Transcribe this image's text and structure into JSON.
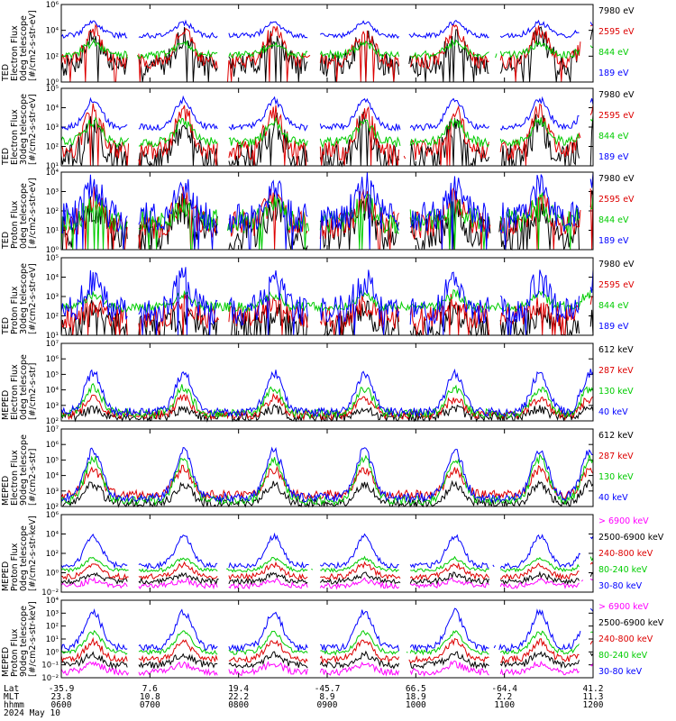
{
  "chart_data": [
    {
      "type": "line",
      "ylabel_lines": [
        "TED",
        "Electron Flux",
        "0deg telescope",
        "[#/cm2-s-str-eV]"
      ],
      "y_ticks": [
        "10⁶",
        "10⁴",
        "10²",
        "10⁰"
      ],
      "y_range_log10": [
        0,
        6
      ],
      "series": [
        {
          "name": "7980 eV",
          "color": "#000000",
          "base": 1.3,
          "peaks": 3.5,
          "noise": 0.9,
          "gaps": true
        },
        {
          "name": "2595 eV",
          "color": "#dd0000",
          "base": 1.6,
          "peaks": 4.0,
          "noise": 0.6,
          "gaps": true
        },
        {
          "name": "844 eV",
          "color": "#00cc00",
          "base": 2.1,
          "peaks": 3.0,
          "noise": 0.3,
          "gaps": true
        },
        {
          "name": "189 eV",
          "color": "#0000ff",
          "base": 3.6,
          "peaks": 4.6,
          "noise": 0.2,
          "gaps": true
        }
      ]
    },
    {
      "type": "line",
      "ylabel_lines": [
        "TED",
        "Electron Flux",
        "30deg telescope",
        "[#/cm2-s-str-eV]"
      ],
      "y_ticks": [
        "10⁵",
        "10⁴",
        "10³",
        "10²",
        "10¹"
      ],
      "y_range_log10": [
        0.6,
        5.2
      ],
      "series": [
        {
          "name": "7980 eV",
          "color": "#000000",
          "base": 1.0,
          "peaks": 3.0,
          "noise": 0.9,
          "gaps": true
        },
        {
          "name": "2595 eV",
          "color": "#dd0000",
          "base": 1.5,
          "peaks": 3.8,
          "noise": 0.6,
          "gaps": true
        },
        {
          "name": "844 eV",
          "color": "#00cc00",
          "base": 2.0,
          "peaks": 3.2,
          "noise": 0.3,
          "gaps": true
        },
        {
          "name": "189 eV",
          "color": "#0000ff",
          "base": 2.9,
          "peaks": 4.5,
          "noise": 0.2,
          "gaps": true
        }
      ]
    },
    {
      "type": "line",
      "ylabel_lines": [
        "TED",
        "Proton Flux",
        "0deg telescope",
        "[#/cm2-s-str-eV]"
      ],
      "y_ticks": [
        "10⁴",
        "10³",
        "10²",
        "10¹",
        "10⁰"
      ],
      "y_range_log10": [
        0,
        4.4
      ],
      "series": [
        {
          "name": "7980 eV",
          "color": "#000000",
          "base": 0.9,
          "peaks": 2.4,
          "noise": 1.0,
          "gaps": true
        },
        {
          "name": "2595 eV",
          "color": "#dd0000",
          "base": 1.4,
          "peaks": 2.8,
          "noise": 0.8,
          "gaps": true
        },
        {
          "name": "844 eV",
          "color": "#00cc00",
          "base": 1.6,
          "peaks": 2.6,
          "noise": 0.7,
          "gaps": true
        },
        {
          "name": "189 eV",
          "color": "#0000ff",
          "base": 1.8,
          "peaks": 3.6,
          "noise": 0.9,
          "gaps": true
        }
      ]
    },
    {
      "type": "line",
      "ylabel_lines": [
        "TED",
        "Proton Flux",
        "30deg telescope",
        "[#/cm2-s-str-eV]"
      ],
      "y_ticks": [
        "10⁵",
        "10⁴",
        "10³",
        "10²",
        "10¹"
      ],
      "y_range_log10": [
        0.5,
        5.2
      ],
      "series": [
        {
          "name": "7980 eV",
          "color": "#000000",
          "base": 1.0,
          "peaks": 1.8,
          "noise": 0.9,
          "gaps": true
        },
        {
          "name": "2595 eV",
          "color": "#dd0000",
          "base": 1.6,
          "peaks": 2.4,
          "noise": 0.7,
          "gaps": true
        },
        {
          "name": "844 eV",
          "color": "#00cc00",
          "base": 2.2,
          "peaks": 3.0,
          "noise": 0.3,
          "gaps": false
        },
        {
          "name": "189 eV",
          "color": "#0000ff",
          "base": 2.0,
          "peaks": 3.8,
          "noise": 0.9,
          "gaps": true
        }
      ]
    },
    {
      "type": "line",
      "ylabel_lines": [
        "MEPED",
        "Electron Flux",
        "0deg telescope",
        "[#/cm2-s-str]"
      ],
      "y_ticks": [
        "10⁷",
        "10⁶",
        "10⁵",
        "10⁴",
        "10³",
        "10²"
      ],
      "y_range_log10": [
        1.8,
        7
      ],
      "series": [
        {
          "name": "612 keV",
          "color": "#000000",
          "base": 2.05,
          "peaks": 2.6,
          "noise": 0.3,
          "gaps": false
        },
        {
          "name": "287 keV",
          "color": "#dd0000",
          "base": 2.2,
          "peaks": 3.3,
          "noise": 0.3,
          "gaps": false
        },
        {
          "name": "130 keV",
          "color": "#00cc00",
          "base": 2.3,
          "peaks": 4.0,
          "noise": 0.3,
          "gaps": false
        },
        {
          "name": "40 keV",
          "color": "#0000ff",
          "base": 2.4,
          "peaks": 5.0,
          "noise": 0.3,
          "gaps": false
        }
      ]
    },
    {
      "type": "line",
      "ylabel_lines": [
        "MEPED",
        "Electron Flux",
        "90deg telescope",
        "[#/cm2-s-str]"
      ],
      "y_ticks": [
        "10⁷",
        "10⁶",
        "10⁵",
        "10⁴",
        "10³",
        "10²"
      ],
      "y_range_log10": [
        1.8,
        7
      ],
      "series": [
        {
          "name": "612 keV",
          "color": "#000000",
          "base": 2.0,
          "peaks": 3.3,
          "noise": 0.3,
          "gaps": false
        },
        {
          "name": "287 keV",
          "color": "#dd0000",
          "base": 2.6,
          "peaks": 4.3,
          "noise": 0.3,
          "gaps": false
        },
        {
          "name": "130 keV",
          "color": "#00cc00",
          "base": 2.2,
          "peaks": 5.0,
          "noise": 0.3,
          "gaps": false
        },
        {
          "name": "40 keV",
          "color": "#0000ff",
          "base": 2.4,
          "peaks": 5.6,
          "noise": 0.3,
          "gaps": false
        }
      ]
    },
    {
      "type": "line",
      "ylabel_lines": [
        "MEPED",
        "Proton Flux",
        "0deg telescope",
        "[#/cm2-s-str-keV]"
      ],
      "y_ticks": [
        "10⁶",
        "10⁴",
        "10²",
        "10⁰",
        "10⁻²"
      ],
      "y_range_log10": [
        -2.5,
        6
      ],
      "series": [
        {
          "name": "> 6900 keV",
          "color": "#ff00ff",
          "base": -1.8,
          "peaks": -1.2,
          "noise": 0.3,
          "gaps": true
        },
        {
          "name": "2500-6900 keV",
          "color": "#000000",
          "base": -1.3,
          "peaks": -0.6,
          "noise": 0.3,
          "gaps": true
        },
        {
          "name": "240-800 keV",
          "color": "#dd0000",
          "base": -0.8,
          "peaks": 0.5,
          "noise": 0.3,
          "gaps": true
        },
        {
          "name": "80-240 keV",
          "color": "#00cc00",
          "base": -0.1,
          "peaks": 1.2,
          "noise": 0.2,
          "gaps": true
        },
        {
          "name": "30-80 keV",
          "color": "#0000ff",
          "base": 0.4,
          "peaks": 3.6,
          "noise": 0.3,
          "gaps": true
        }
      ]
    },
    {
      "type": "line",
      "ylabel_lines": [
        "MEPED",
        "Proton Flux",
        "90deg telescope",
        "[#/cm2-s-str-keV]"
      ],
      "y_ticks": [
        "10⁴",
        "10³",
        "10²",
        "10¹",
        "10⁰",
        "10⁻¹",
        "10⁻²"
      ],
      "y_range_log10": [
        -2.3,
        4.4
      ],
      "series": [
        {
          "name": "> 6900 keV",
          "color": "#ff00ff",
          "base": -1.8,
          "peaks": -1.1,
          "noise": 0.3,
          "gaps": true
        },
        {
          "name": "2500-6900 keV",
          "color": "#000000",
          "base": -1.2,
          "peaks": -0.3,
          "noise": 0.3,
          "gaps": true
        },
        {
          "name": "240-800 keV",
          "color": "#dd0000",
          "base": -0.7,
          "peaks": 0.8,
          "noise": 0.3,
          "gaps": true
        },
        {
          "name": "80-240 keV",
          "color": "#00cc00",
          "base": -0.1,
          "peaks": 1.6,
          "noise": 0.2,
          "gaps": true
        },
        {
          "name": "30-80 keV",
          "color": "#0000ff",
          "base": 0.3,
          "peaks": 3.4,
          "noise": 0.3,
          "gaps": true
        }
      ]
    }
  ],
  "x_axis": {
    "labels": [
      "Lat",
      "MLT",
      "hhmm",
      "2024 May 10"
    ],
    "ticks": [
      {
        "lat": "-35.9",
        "mlt": "23.8",
        "hhmm": "0600"
      },
      {
        "lat": "7.6",
        "mlt": "10.8",
        "hhmm": "0700"
      },
      {
        "lat": "19.4",
        "mlt": "22.2",
        "hhmm": "0800"
      },
      {
        "lat": "-45.7",
        "mlt": "8.9",
        "hhmm": "0900"
      },
      {
        "lat": "66.5",
        "mlt": "18.9",
        "hhmm": "1000"
      },
      {
        "lat": "-64.4",
        "mlt": "2.2",
        "hhmm": "1100"
      },
      {
        "lat": "41.2",
        "mlt": "11.3",
        "hhmm": "1200"
      }
    ],
    "pass_centers_fraction": [
      0.06,
      0.23,
      0.4,
      0.57,
      0.74,
      0.9,
      0.995
    ]
  }
}
